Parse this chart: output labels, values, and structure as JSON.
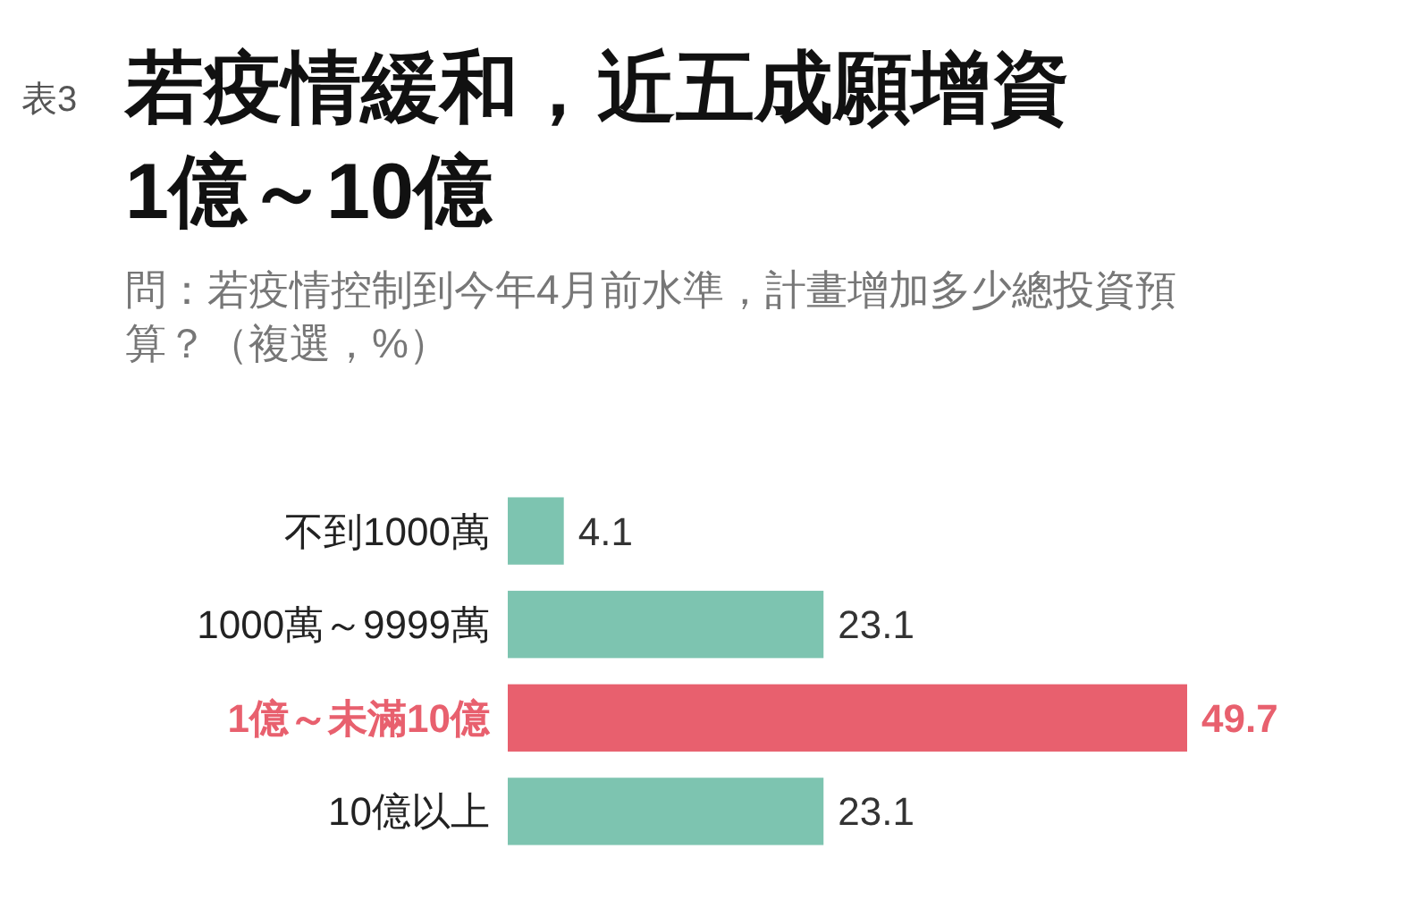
{
  "chart_data": {
    "type": "bar",
    "orientation": "horizontal",
    "title": "若疫情緩和，近五成願增資\n1億～10億",
    "subtitle": "問：若疫情控制到今年4月前水準，計畫增加多少總投資預算？（複選，%）",
    "annotations": [
      "表3"
    ],
    "categories": [
      "不到1000萬",
      "1000萬～9999萬",
      "1億～未滿10億",
      "10億以上"
    ],
    "values": [
      4.1,
      23.1,
      49.7,
      23.1
    ],
    "colors": [
      "#7dc4b0",
      "#7dc4b0",
      "#e8606e",
      "#7dc4b0"
    ],
    "data_labels": true
  }
}
